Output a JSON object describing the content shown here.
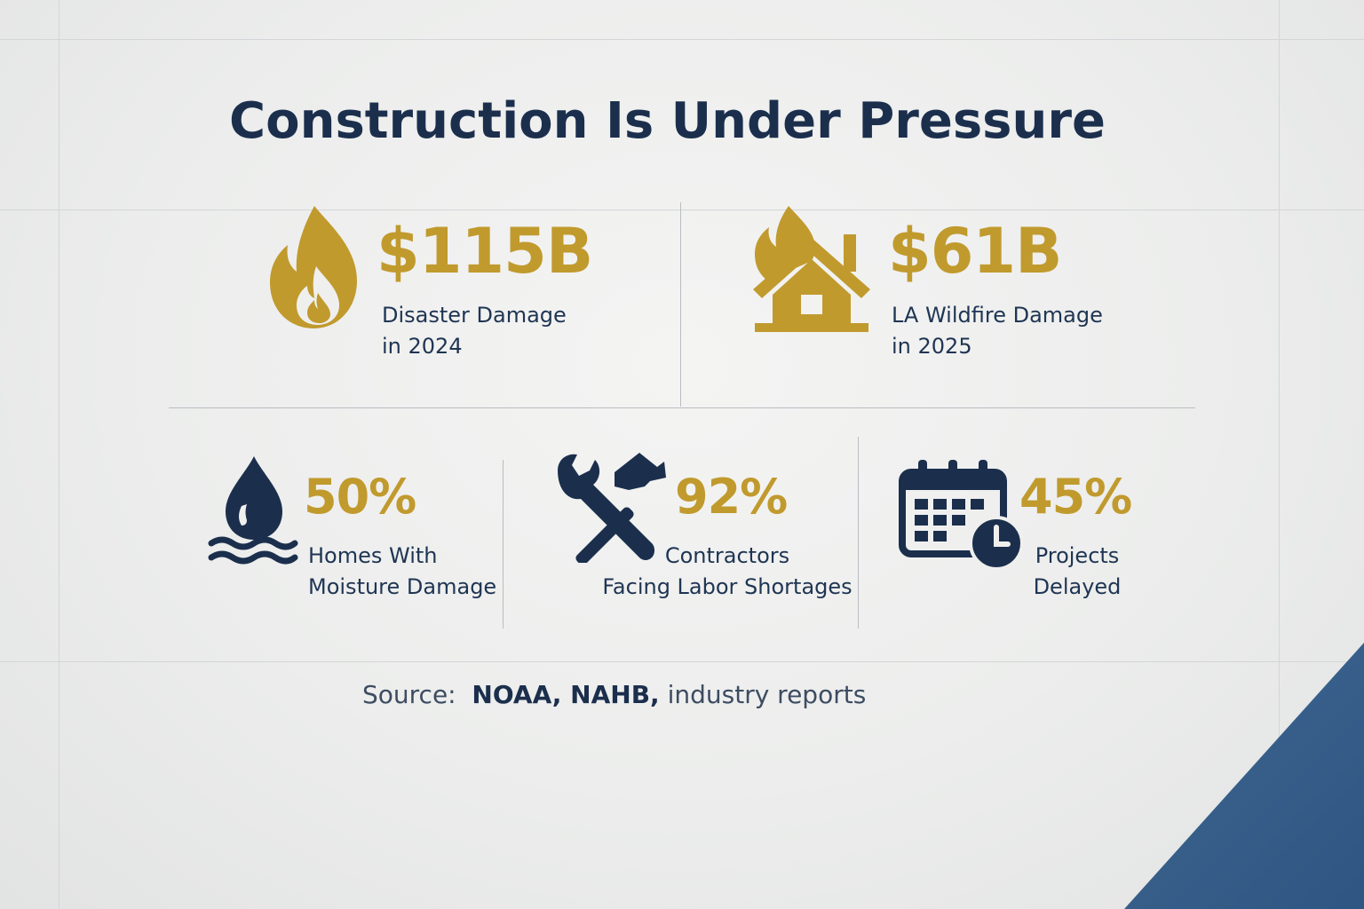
{
  "title": "Construction Is Under Pressure",
  "colors": {
    "gold": "#c19a2e",
    "navy": "#1b2f4d",
    "blue": "#2f5682"
  },
  "stats": [
    {
      "icon": "flame-icon",
      "value": "$115B",
      "label_lines": [
        "Disaster Damage",
        "in 2024"
      ]
    },
    {
      "icon": "house-fire-icon",
      "value": "$61B",
      "label_lines": [
        "LA Wildfire Damage",
        "in 2025"
      ]
    },
    {
      "icon": "water-drop-icon",
      "value": "50%",
      "label_lines": [
        "Homes With",
        "Moisture Damage"
      ]
    },
    {
      "icon": "wrench-hammer-icon",
      "value": "92%",
      "label_lines": [
        "Contractors",
        "Facing Labor Shortages"
      ]
    },
    {
      "icon": "calendar-clock-icon",
      "value": "45%",
      "label_lines": [
        "Projects",
        "Delayed"
      ]
    }
  ],
  "source": {
    "prefix": "Source:",
    "bold": "NOAA, NAHB,",
    "rest": "industry reports"
  }
}
